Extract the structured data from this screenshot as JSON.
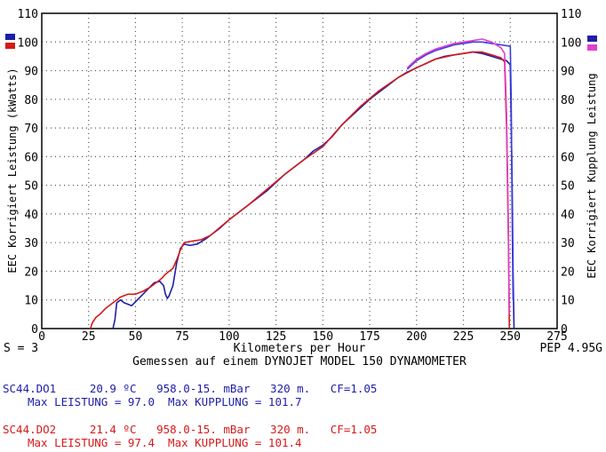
{
  "chart_data": {
    "type": "line",
    "x_axis": {
      "label": "Kilometers per Hour",
      "range": [
        0,
        275
      ],
      "ticks": [
        0,
        25,
        50,
        75,
        100,
        125,
        150,
        175,
        200,
        225,
        250,
        275
      ]
    },
    "y_left": {
      "label": "EEC Korrigiert Leistung (kWatts)",
      "range": [
        0,
        110
      ],
      "ticks": [
        0,
        10,
        20,
        30,
        40,
        50,
        60,
        70,
        80,
        90,
        100,
        110
      ]
    },
    "y_right": {
      "label": "EEC Korrigiert Kupplung Leistung",
      "range": [
        0,
        110
      ],
      "ticks": [
        0,
        10,
        20,
        30,
        40,
        50,
        60,
        70,
        80,
        90,
        100,
        110
      ]
    },
    "grid": true,
    "series": [
      {
        "color": "#1e1ea8",
        "kind": "leistung",
        "points": [
          [
            38,
            0
          ],
          [
            39,
            3
          ],
          [
            40,
            9
          ],
          [
            42,
            10
          ],
          [
            44,
            9
          ],
          [
            48,
            8
          ],
          [
            51,
            10
          ],
          [
            54,
            12
          ],
          [
            57,
            14
          ],
          [
            60,
            16
          ],
          [
            63,
            16.5
          ],
          [
            65,
            15
          ],
          [
            66,
            12
          ],
          [
            67,
            10.5
          ],
          [
            68,
            11.5
          ],
          [
            70,
            15
          ],
          [
            72,
            23
          ],
          [
            74,
            28
          ],
          [
            76,
            29.5
          ],
          [
            79,
            29
          ],
          [
            83,
            29.5
          ],
          [
            88,
            31.5
          ],
          [
            95,
            35
          ],
          [
            100,
            38
          ],
          [
            110,
            43
          ],
          [
            120,
            48
          ],
          [
            125,
            51
          ],
          [
            130,
            54
          ],
          [
            140,
            59
          ],
          [
            145,
            62
          ],
          [
            150,
            64
          ],
          [
            155,
            67
          ],
          [
            160,
            71
          ],
          [
            165,
            74
          ],
          [
            170,
            77
          ],
          [
            175,
            80
          ],
          [
            180,
            82.5
          ],
          [
            185,
            85
          ],
          [
            190,
            87.5
          ],
          [
            195,
            89.5
          ],
          [
            200,
            91
          ],
          [
            205,
            92.5
          ],
          [
            210,
            94
          ],
          [
            215,
            95
          ],
          [
            220,
            95.5
          ],
          [
            225,
            96
          ],
          [
            230,
            96.5
          ],
          [
            235,
            96
          ],
          [
            240,
            95
          ],
          [
            245,
            94
          ],
          [
            248,
            93.5
          ],
          [
            250,
            92
          ],
          [
            251,
            50
          ],
          [
            251.5,
            20
          ],
          [
            252,
            0
          ]
        ]
      },
      {
        "color": "#d41a1a",
        "kind": "leistung",
        "points": [
          [
            26,
            0
          ],
          [
            27,
            2
          ],
          [
            29,
            4
          ],
          [
            31,
            5
          ],
          [
            34,
            7
          ],
          [
            38,
            9
          ],
          [
            42,
            11
          ],
          [
            46,
            12
          ],
          [
            50,
            12
          ],
          [
            54,
            13
          ],
          [
            58,
            14.5
          ],
          [
            61,
            16
          ],
          [
            64,
            17.5
          ],
          [
            66,
            19
          ],
          [
            68,
            20
          ],
          [
            70,
            21
          ],
          [
            72,
            24
          ],
          [
            74,
            27.5
          ],
          [
            76,
            30
          ],
          [
            80,
            30.5
          ],
          [
            85,
            31
          ],
          [
            90,
            32.5
          ],
          [
            100,
            38
          ],
          [
            110,
            43
          ],
          [
            120,
            48.5
          ],
          [
            130,
            54
          ],
          [
            140,
            59
          ],
          [
            150,
            63.5
          ],
          [
            160,
            71
          ],
          [
            170,
            77.5
          ],
          [
            180,
            83
          ],
          [
            190,
            87.5
          ],
          [
            200,
            91
          ],
          [
            210,
            94
          ],
          [
            220,
            95.5
          ],
          [
            230,
            96.5
          ],
          [
            235,
            96.5
          ],
          [
            240,
            95.5
          ],
          [
            245,
            94.5
          ],
          [
            247,
            93
          ],
          [
            248,
            70
          ],
          [
            249,
            30
          ],
          [
            249.5,
            0
          ]
        ]
      },
      {
        "color": "#3b3be0",
        "kind": "kupplung",
        "points": [
          [
            195,
            90.5
          ],
          [
            200,
            93.5
          ],
          [
            205,
            95.5
          ],
          [
            210,
            97
          ],
          [
            215,
            98
          ],
          [
            220,
            99
          ],
          [
            225,
            99.5
          ],
          [
            230,
            100
          ],
          [
            235,
            100
          ],
          [
            240,
            99.5
          ],
          [
            245,
            99
          ],
          [
            250,
            98.5
          ],
          [
            250.5,
            80
          ],
          [
            251,
            40
          ],
          [
            251.5,
            10
          ]
        ]
      },
      {
        "color": "#e040c8",
        "kind": "kupplung",
        "points": [
          [
            195,
            91
          ],
          [
            200,
            94
          ],
          [
            205,
            96
          ],
          [
            210,
            97.5
          ],
          [
            215,
            98.5
          ],
          [
            220,
            99.5
          ],
          [
            225,
            100
          ],
          [
            230,
            100.5
          ],
          [
            235,
            101
          ],
          [
            240,
            100
          ],
          [
            245,
            98
          ],
          [
            247,
            96
          ],
          [
            248,
            75
          ],
          [
            249,
            35
          ],
          [
            249.5,
            5
          ]
        ]
      }
    ]
  },
  "left_labels": {
    "s": "S = 3"
  },
  "right_labels": {
    "pep": "PEP 4.95G"
  },
  "caption": "Gemessen auf einem DYNOJET MODEL 150 DYNAMOMETER",
  "runs": [
    {
      "id": "SC44.DO1",
      "conditions": "20.9 ºC   958.0-15. mBar   320 m.   CF=1.05",
      "max_line": "Max LEISTUNG = 97.0  Max KUPPLUNG = 101.7",
      "color": "#1e1ea8"
    },
    {
      "id": "SC44.DO2",
      "conditions": "21.4 ºC   958.0-15. mBar   320 m.   CF=1.05",
      "max_line": "Max LEISTUNG = 97.4  Max KUPPLUNG = 101.4",
      "color": "#d41a1a"
    }
  ],
  "legend_markers": {
    "top_left_colors": [
      "#1e1ea8",
      "#d41a1a"
    ],
    "top_right_colors": [
      "#1e1ea8",
      "#e040c8"
    ]
  }
}
